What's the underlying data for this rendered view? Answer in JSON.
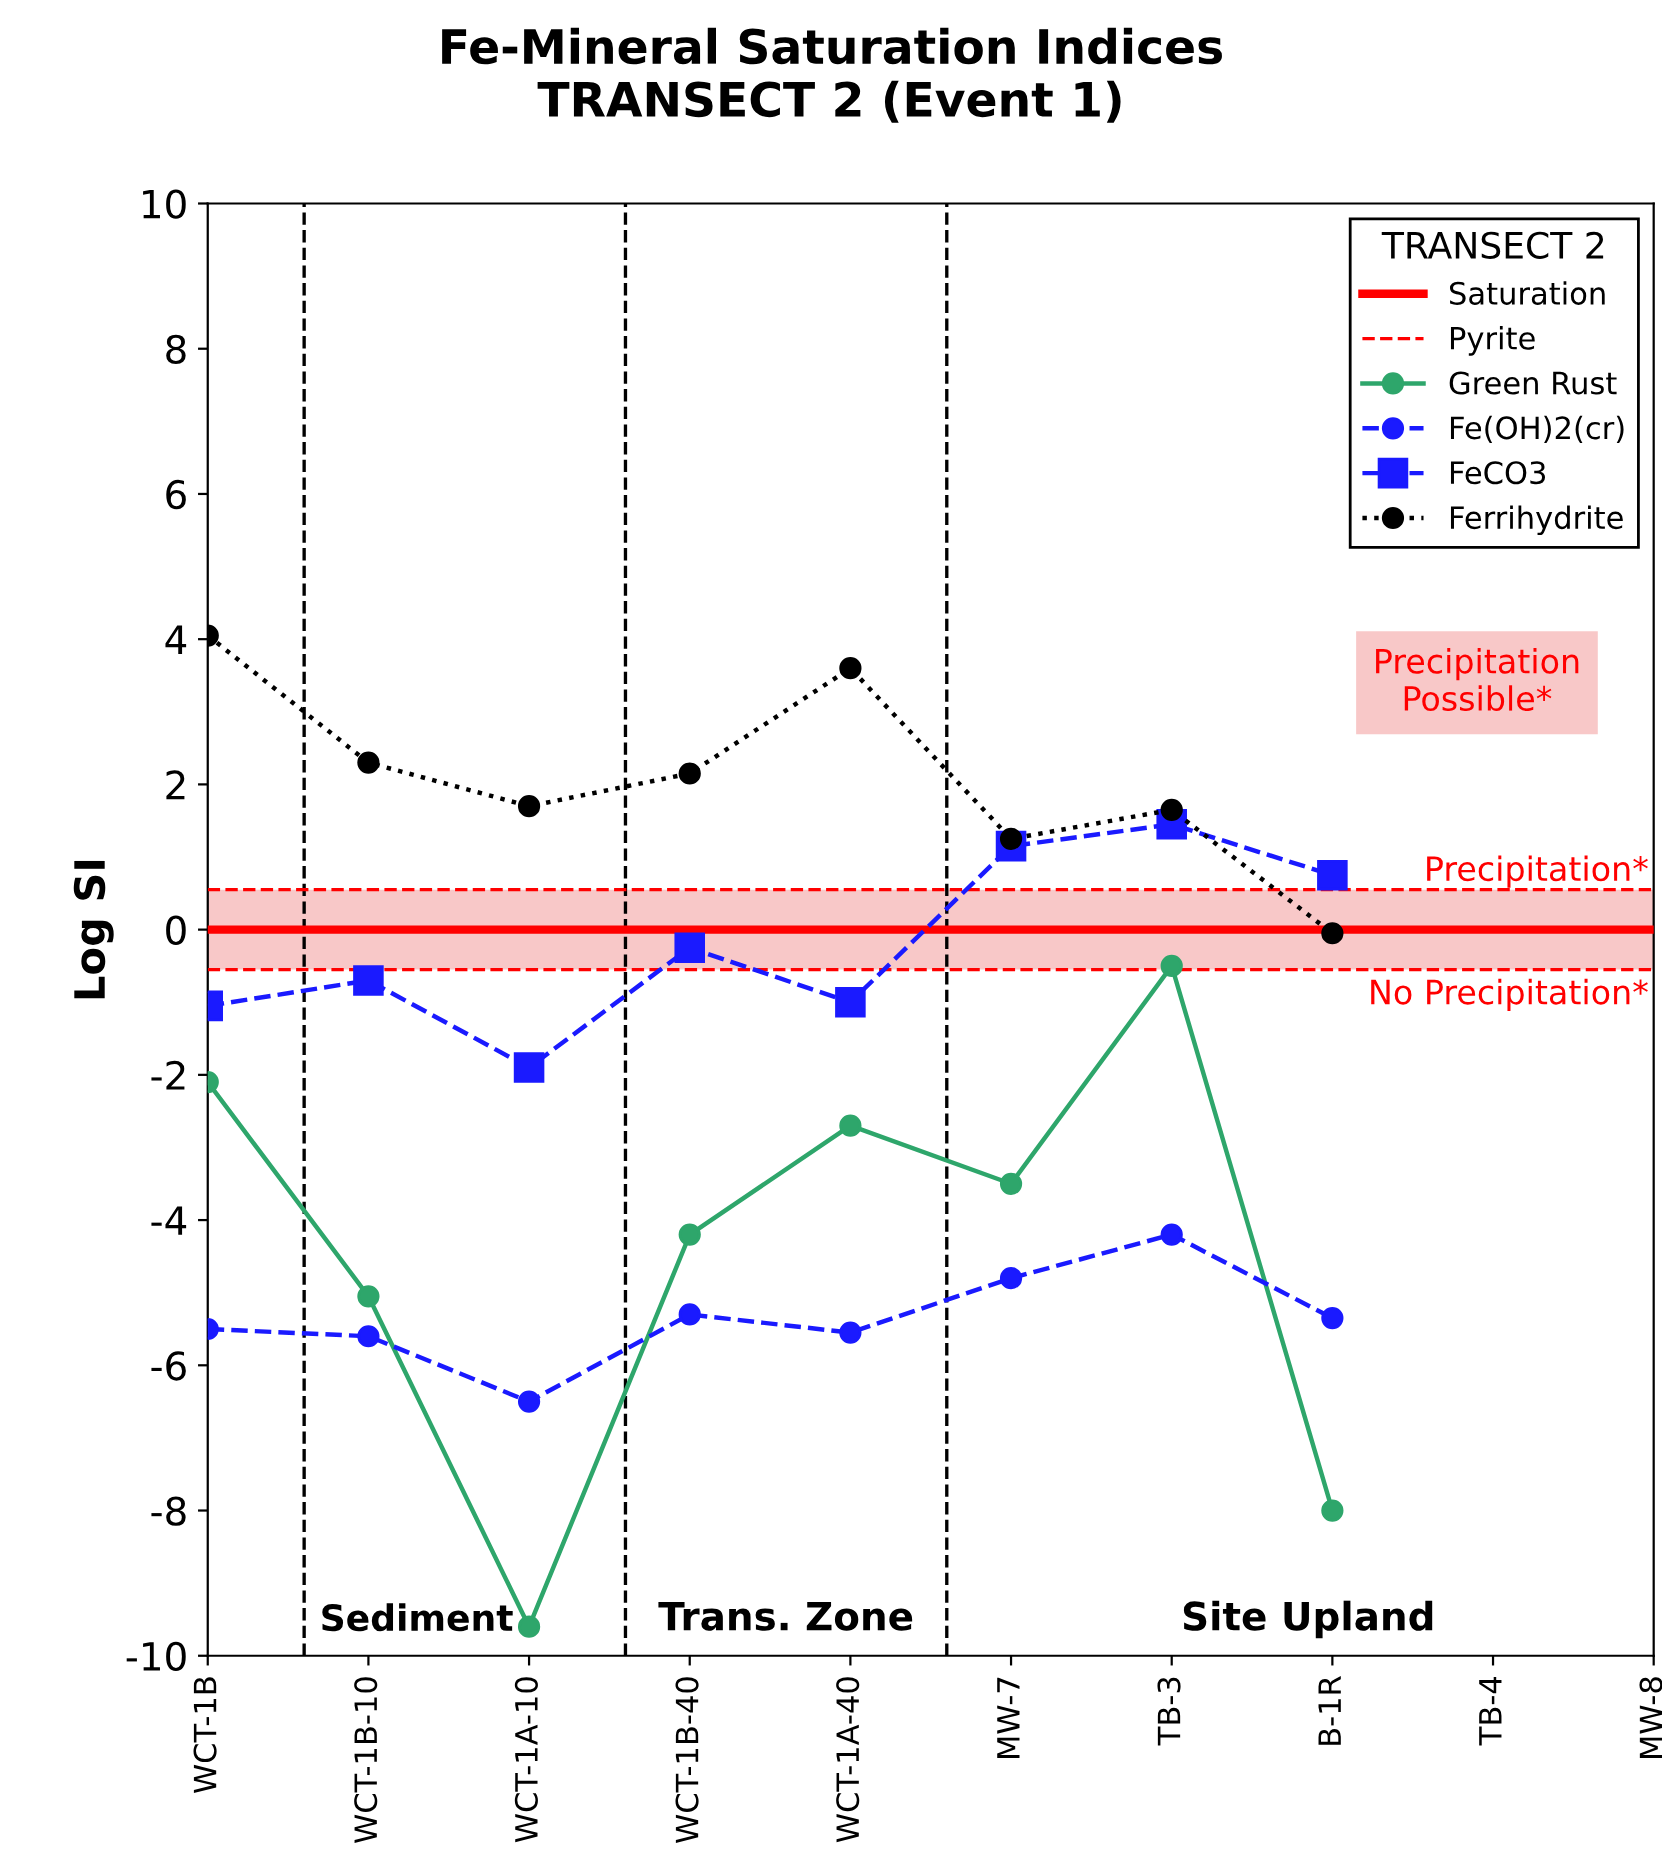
{
  "chart_data": {
    "type": "line",
    "title": "Fe-Mineral Saturation Indices",
    "subtitle": "TRANSECT 2 (Event 1)",
    "ylabel": "Log SI",
    "legend_title": "TRANSECT 2",
    "categories": [
      "WCT-1B",
      "WCT-1B-10",
      "WCT-1A-10",
      "WCT-1B-40",
      "WCT-1A-40",
      "MW-7",
      "TB-3",
      "B-1R",
      "TB-4",
      "MW-8"
    ],
    "ylim": [
      -10,
      10
    ],
    "yticks": [
      -10,
      -8,
      -6,
      -4,
      -2,
      0,
      2,
      4,
      6,
      8,
      10
    ],
    "grid": false,
    "legend": "top right",
    "series": [
      {
        "name": "Saturation",
        "color": "#ff0000",
        "line_style": "solid",
        "marker": "none",
        "values": [
          0,
          0,
          0,
          0,
          0,
          0,
          0,
          0,
          0,
          0
        ]
      },
      {
        "name": "Pyrite",
        "color": "#ff0000",
        "line_style": "dashed",
        "marker": "none",
        "values": [
          0.55,
          0.55,
          0.55,
          0.55,
          0.55,
          0.55,
          0.55,
          0.55,
          0.55,
          0.55
        ]
      },
      {
        "color": "#ff0000",
        "line_style": "dashed",
        "marker": "none",
        "values": [
          -0.55,
          -0.55,
          -0.55,
          -0.55,
          -0.55,
          -0.55,
          -0.55,
          -0.55,
          -0.55,
          -0.55
        ]
      },
      {
        "name": "Green Rust",
        "color": "#2ea66b",
        "line_style": "solid",
        "marker": "circle",
        "values": [
          -2.1,
          -5.05,
          -9.6,
          -4.2,
          -2.7,
          -3.5,
          -0.5,
          -8.0,
          null,
          null
        ]
      },
      {
        "name": "Fe(OH)2(cr)",
        "color": "#1a1aff",
        "line_style": "dashed",
        "marker": "circle",
        "values": [
          -5.5,
          -5.6,
          -6.5,
          -5.3,
          -5.55,
          -4.8,
          -4.2,
          -5.35,
          null,
          null
        ]
      },
      {
        "name": "FeCO3",
        "color": "#1a1aff",
        "line_style": "dashed",
        "marker": "square",
        "values": [
          -1.05,
          -0.7,
          -1.9,
          -0.25,
          -1.0,
          1.15,
          1.45,
          0.75,
          null,
          null
        ]
      },
      {
        "name": "Ferrihydrite",
        "color": "#000000",
        "line_style": "dotted",
        "marker": "circle",
        "values": [
          4.05,
          2.3,
          1.7,
          2.15,
          3.6,
          1.25,
          1.65,
          -0.05,
          null,
          null
        ]
      }
    ],
    "bands": [
      {
        "axis": "y",
        "from": -0.55,
        "to": 0.55,
        "color": "#f8c8c8"
      }
    ],
    "annotations": [
      "Sediment",
      "Trans. Zone",
      "Site Upland",
      "Precipitation*",
      "No Precipitation*",
      "Precipitation\nPossible*"
    ]
  }
}
